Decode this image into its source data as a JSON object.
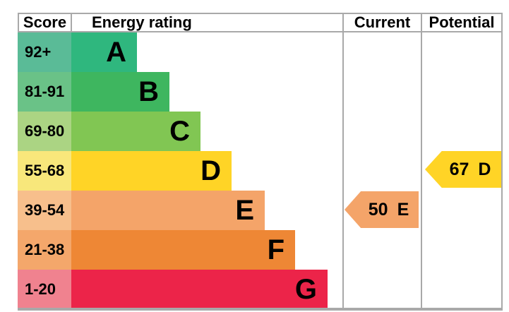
{
  "header": {
    "score": "Score",
    "energy_rating": "Energy rating",
    "current": "Current",
    "potential": "Potential"
  },
  "chart_data": {
    "type": "bar",
    "title": "Energy rating",
    "legend_position": "none",
    "bands": [
      {
        "letter": "A",
        "score": "92+",
        "bar_color": "#2fb77e",
        "cell_color": "#5abb97"
      },
      {
        "letter": "B",
        "score": "81-91",
        "bar_color": "#3eb65f",
        "cell_color": "#6ac287"
      },
      {
        "letter": "C",
        "score": "69-80",
        "bar_color": "#81c653",
        "cell_color": "#abd483"
      },
      {
        "letter": "D",
        "score": "55-68",
        "bar_color": "#ffd426",
        "cell_color": "#f8e77b"
      },
      {
        "letter": "E",
        "score": "39-54",
        "bar_color": "#f4a469",
        "cell_color": "#f7bf8c"
      },
      {
        "letter": "F",
        "score": "21-38",
        "bar_color": "#ee8735",
        "cell_color": "#f4a76b"
      },
      {
        "letter": "G",
        "score": "1-20",
        "bar_color": "#ec2449",
        "cell_color": "#f0828f"
      }
    ],
    "markers": {
      "current": {
        "value": 50,
        "band": "E",
        "color": "#f4a469"
      },
      "potential": {
        "value": 67,
        "band": "D",
        "color": "#ffd426"
      }
    },
    "border_color": "#a9a9a9"
  }
}
